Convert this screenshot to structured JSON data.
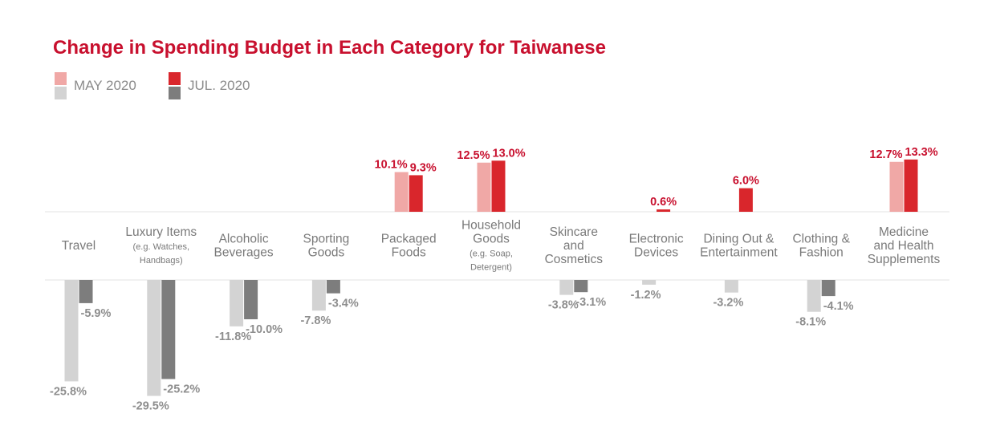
{
  "chart_data": {
    "type": "bar",
    "title": "Change in Spending Budget in Each Category for Taiwanese",
    "legend": [
      {
        "label": "MAY 2020",
        "color_increase": "#f0a8a6",
        "color_decrease": "#d3d3d3"
      },
      {
        "label": "JUL. 2020",
        "color_increase": "#d9262c",
        "color_decrease": "#7d7d7d"
      }
    ],
    "categories": [
      {
        "lines": [
          "Travel"
        ],
        "sub": []
      },
      {
        "lines": [
          "Luxury Items"
        ],
        "sub": [
          "(e.g. Watches,",
          "Handbags)"
        ]
      },
      {
        "lines": [
          "Alcoholic",
          "Beverages"
        ],
        "sub": []
      },
      {
        "lines": [
          "Sporting",
          "Goods"
        ],
        "sub": []
      },
      {
        "lines": [
          "Packaged",
          "Foods"
        ],
        "sub": []
      },
      {
        "lines": [
          "Household",
          "Goods"
        ],
        "sub": [
          "(e.g. Soap,",
          "Detergent)"
        ]
      },
      {
        "lines": [
          "Skincare",
          "and",
          "Cosmetics"
        ],
        "sub": []
      },
      {
        "lines": [
          "Electronic",
          "Devices"
        ],
        "sub": []
      },
      {
        "lines": [
          "Dining Out &",
          "Entertainment"
        ],
        "sub": []
      },
      {
        "lines": [
          "Clothing &",
          "Fashion"
        ],
        "sub": []
      },
      {
        "lines": [
          "Medicine",
          "and Health",
          "Supplements"
        ],
        "sub": []
      }
    ],
    "series": [
      {
        "name": "MAY 2020",
        "values": [
          -25.8,
          -29.5,
          -11.8,
          -7.8,
          10.1,
          12.5,
          -3.8,
          -1.2,
          -3.2,
          -8.1,
          12.7
        ]
      },
      {
        "name": "JUL. 2020",
        "values": [
          -5.9,
          -25.2,
          -10.0,
          -3.4,
          9.3,
          13.0,
          -3.1,
          0.6,
          6.0,
          -4.1,
          13.3
        ]
      }
    ],
    "unit": "%"
  }
}
